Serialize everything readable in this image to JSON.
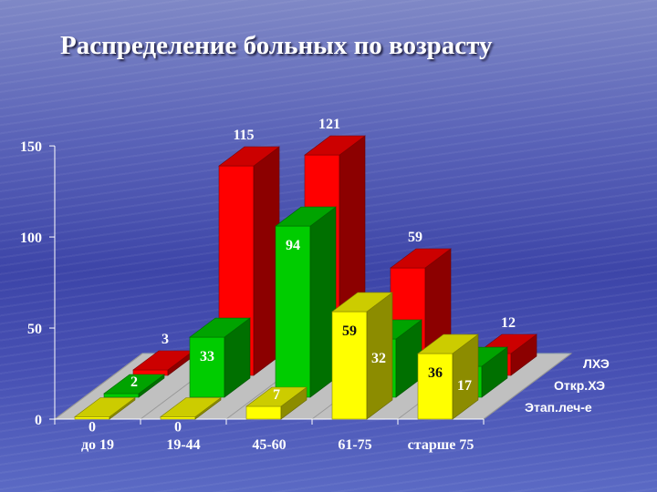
{
  "slide": {
    "title": "Распределение больных по возрасту"
  },
  "chart_data": {
    "type": "bar",
    "title": "Распределение больных по возрасту",
    "categories": [
      "до 19",
      "19-44",
      "45-60",
      "61-75",
      "старше 75"
    ],
    "series": [
      {
        "name": "ЛХЭ",
        "values": [
          3,
          115,
          121,
          59,
          12
        ],
        "color": "#ff0000"
      },
      {
        "name": "Откр.ХЭ",
        "values": [
          2,
          33,
          94,
          32,
          17
        ],
        "color": "#00cc00"
      },
      {
        "name": "Этап.леч-е",
        "values": [
          0,
          0,
          7,
          59,
          36
        ],
        "color": "#ffff00"
      }
    ],
    "yticks": [
      0,
      50,
      100,
      150
    ],
    "ylim": [
      0,
      150
    ],
    "legend": "right"
  }
}
